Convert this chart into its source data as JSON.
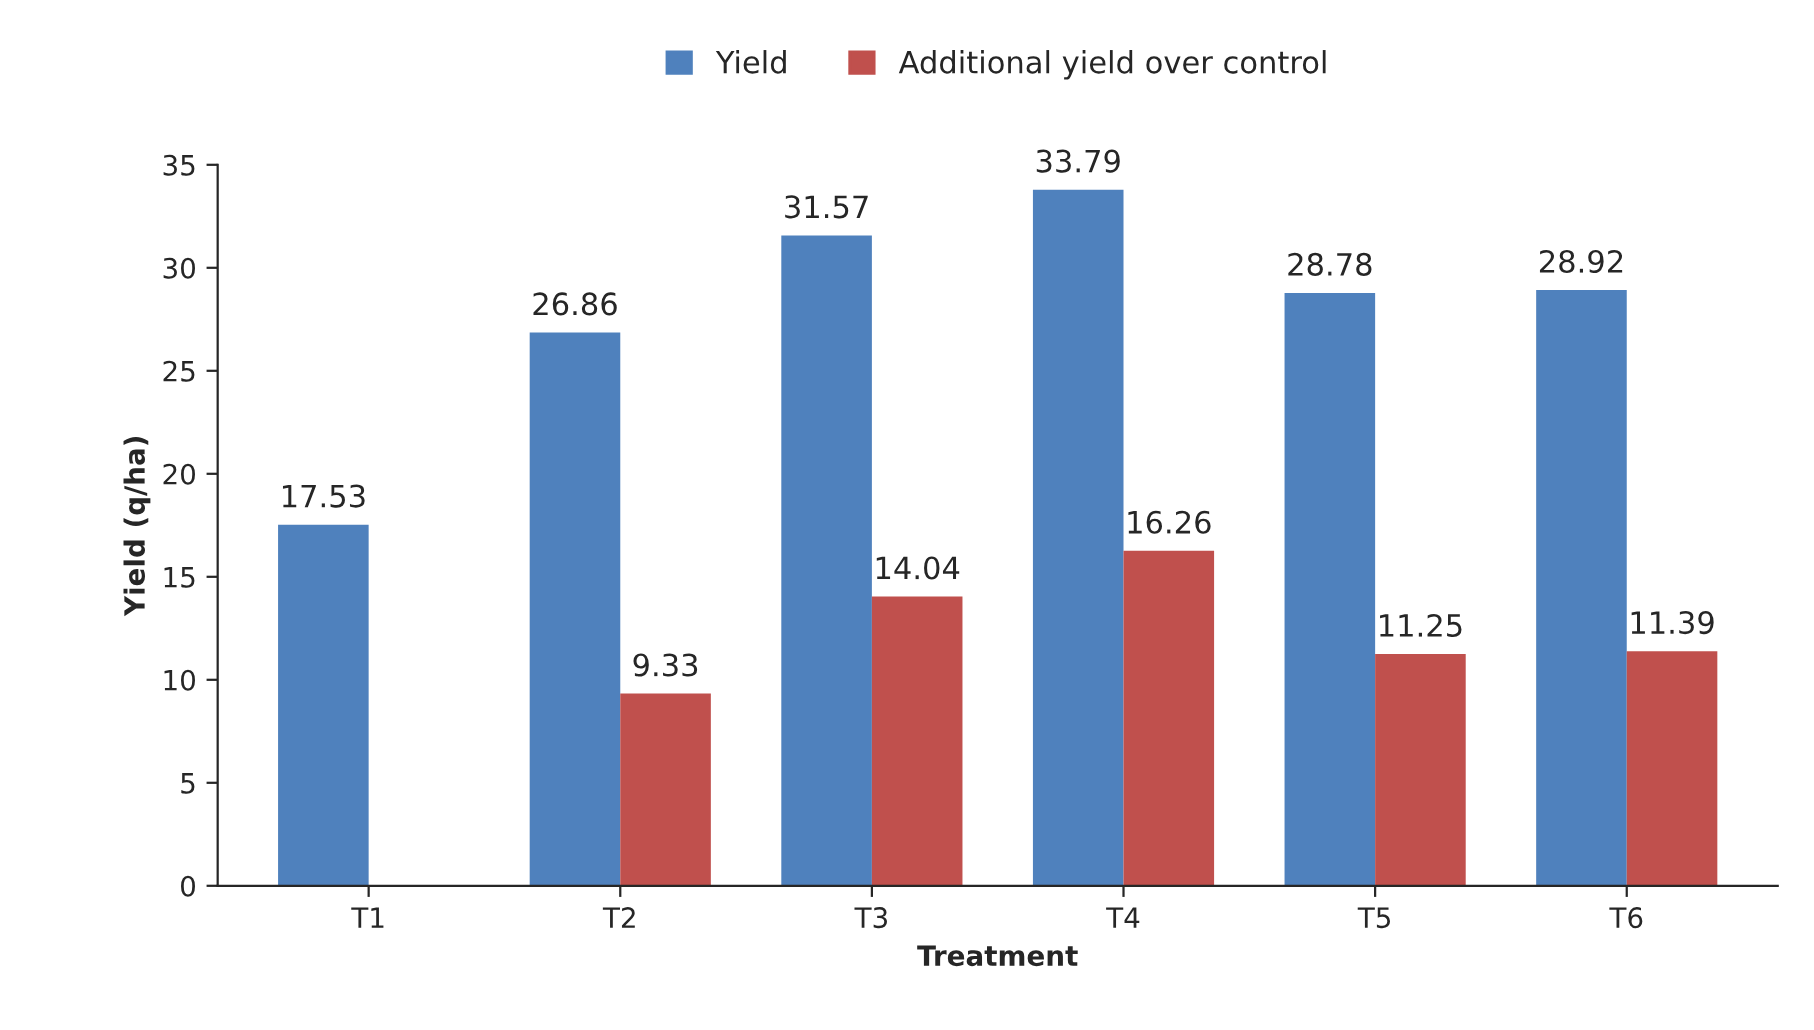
{
  "chart_data": {
    "type": "bar",
    "xlabel": "Treatment",
    "ylabel": "Yield (q/ha)",
    "categories": [
      "T1",
      "T2",
      "T3",
      "T4",
      "T5",
      "T6"
    ],
    "series": [
      {
        "name": "Yield",
        "color": "#4f81bd",
        "values": [
          17.53,
          26.86,
          31.57,
          33.79,
          28.78,
          28.92
        ]
      },
      {
        "name": "Additional yield over control",
        "color": "#c0504d",
        "values": [
          null,
          9.33,
          14.04,
          16.26,
          11.25,
          11.39
        ]
      }
    ],
    "ylim": [
      0,
      35
    ],
    "yticks": [
      0,
      5,
      10,
      15,
      20,
      25,
      30,
      35
    ],
    "data_labels": true,
    "grid": false,
    "legend": "top"
  }
}
